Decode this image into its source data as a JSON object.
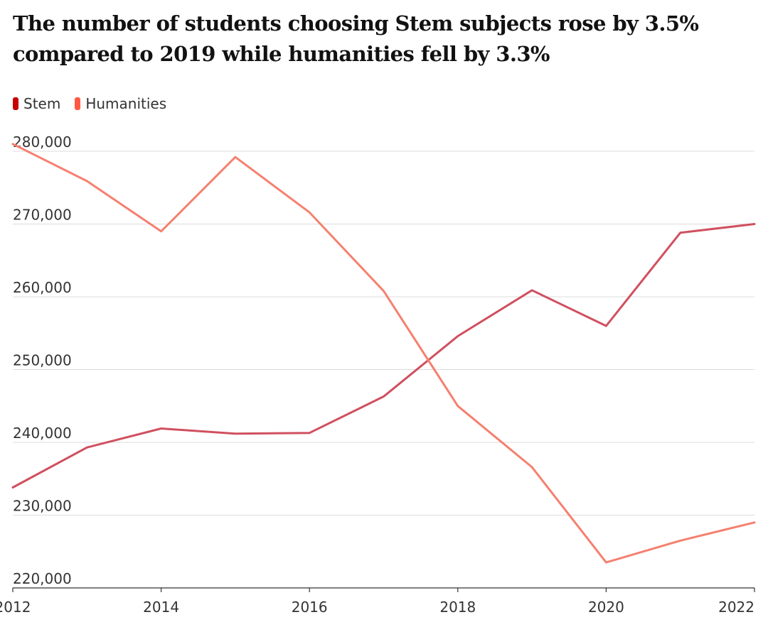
{
  "title": "The number of students choosing Stem subjects rose by 3.5% compared to 2019 while humanities fell by 3.3%",
  "chart_data": {
    "type": "line",
    "title": "The number of students choosing Stem subjects rose by 3.5% compared to 2019 while humanities fell by 3.3%",
    "xlabel": "",
    "ylabel": "",
    "x": [
      2012,
      2013,
      2014,
      2015,
      2016,
      2017,
      2018,
      2019,
      2020,
      2021,
      2022
    ],
    "xlim": [
      2012,
      2022
    ],
    "ylim": [
      220000,
      280000
    ],
    "x_ticks": [
      "2012",
      "2014",
      "2016",
      "2018",
      "2020",
      "2022"
    ],
    "y_ticks": [
      "220,000",
      "230,000",
      "240,000",
      "250,000",
      "260,000",
      "270,000",
      "280,000"
    ],
    "grid": "horizontal",
    "legend_position": "top-left",
    "series": [
      {
        "name": "Stem",
        "color": "#d0505f",
        "legend_color": "#c70000",
        "values": [
          233800,
          239300,
          241900,
          241200,
          241300,
          246300,
          254600,
          260900,
          256000,
          268800,
          270000
        ]
      },
      {
        "name": "Humanities",
        "color": "#f5806f",
        "legend_color": "#ff5943",
        "values": [
          281000,
          275900,
          269000,
          279200,
          271600,
          260800,
          245000,
          236600,
          223500,
          226500,
          229000
        ]
      }
    ]
  }
}
